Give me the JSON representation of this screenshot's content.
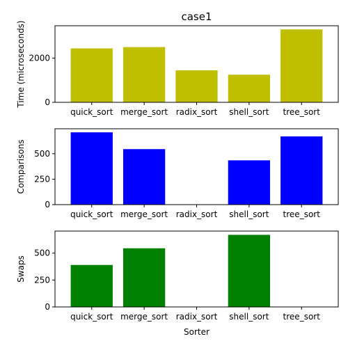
{
  "chart_data": [
    {
      "type": "bar",
      "title": "case1",
      "xlabel": "",
      "ylabel": "Time (microseconds)",
      "categories": [
        "quick_sort",
        "merge_sort",
        "radix_sort",
        "shell_sort",
        "tree_sort"
      ],
      "values": [
        2440,
        2500,
        1450,
        1250,
        3300
      ],
      "ylim": [
        0,
        3465
      ],
      "yticks": [
        0,
        2000
      ],
      "color": "#bfbf00"
    },
    {
      "type": "bar",
      "title": "",
      "xlabel": "",
      "ylabel": "Comparisons",
      "categories": [
        "quick_sort",
        "merge_sort",
        "radix_sort",
        "shell_sort",
        "tree_sort"
      ],
      "values": [
        710,
        545,
        0,
        435,
        670
      ],
      "ylim": [
        0,
        745
      ],
      "yticks": [
        0,
        250,
        500
      ],
      "color": "#0000ff"
    },
    {
      "type": "bar",
      "title": "",
      "xlabel": "Sorter",
      "ylabel": "Swaps",
      "categories": [
        "quick_sort",
        "merge_sort",
        "radix_sort",
        "shell_sort",
        "tree_sort"
      ],
      "values": [
        390,
        545,
        0,
        670,
        0
      ],
      "ylim": [
        0,
        705
      ],
      "yticks": [
        0,
        250,
        500
      ],
      "color": "#008000"
    }
  ]
}
